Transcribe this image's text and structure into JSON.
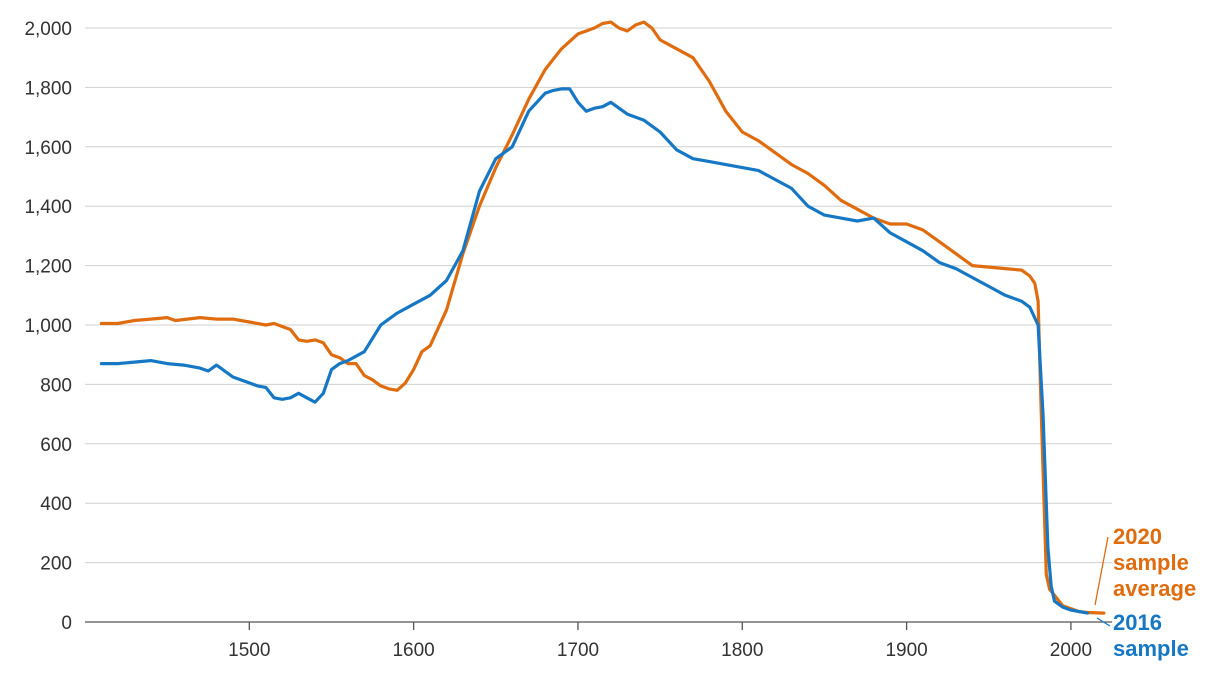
{
  "chart_data": {
    "type": "line",
    "title": "",
    "xlabel": "",
    "ylabel": "",
    "xlim": [
      1400,
      2025
    ],
    "ylim": [
      0,
      2000
    ],
    "grid": "horizontal",
    "x_ticks": [
      "1500",
      "1600",
      "1700",
      "1800",
      "1900",
      "2000"
    ],
    "y_ticks": [
      "0",
      "200",
      "400",
      "600",
      "800",
      "1,000",
      "1,200",
      "1,400",
      "1,600",
      "1,800",
      "2,000"
    ],
    "series": [
      {
        "name": "2020 sample average",
        "label_lines": [
          "2020",
          "sample",
          "average"
        ],
        "color": "#e06c10",
        "x": [
          1410,
          1420,
          1430,
          1440,
          1450,
          1455,
          1470,
          1480,
          1490,
          1500,
          1510,
          1515,
          1520,
          1525,
          1530,
          1535,
          1540,
          1545,
          1550,
          1555,
          1560,
          1565,
          1570,
          1575,
          1580,
          1585,
          1590,
          1595,
          1600,
          1605,
          1610,
          1620,
          1630,
          1640,
          1650,
          1660,
          1670,
          1680,
          1690,
          1700,
          1705,
          1710,
          1715,
          1720,
          1725,
          1730,
          1735,
          1740,
          1745,
          1750,
          1760,
          1770,
          1780,
          1790,
          1800,
          1810,
          1820,
          1830,
          1840,
          1850,
          1860,
          1870,
          1880,
          1890,
          1900,
          1910,
          1920,
          1930,
          1940,
          1950,
          1960,
          1970,
          1975,
          1978,
          1980,
          1982,
          1985,
          1987,
          1990,
          1995,
          2000,
          2005,
          2010,
          2020
        ],
        "y": [
          1005,
          1005,
          1015,
          1020,
          1025,
          1015,
          1025,
          1020,
          1020,
          1010,
          1000,
          1005,
          995,
          985,
          950,
          945,
          950,
          940,
          900,
          890,
          870,
          870,
          830,
          815,
          795,
          785,
          780,
          805,
          850,
          910,
          930,
          1050,
          1240,
          1400,
          1530,
          1640,
          1760,
          1860,
          1930,
          1980,
          1990,
          2000,
          2015,
          2020,
          2000,
          1990,
          2010,
          2020,
          2000,
          1960,
          1930,
          1900,
          1820,
          1720,
          1650,
          1620,
          1580,
          1540,
          1510,
          1470,
          1420,
          1390,
          1360,
          1340,
          1340,
          1320,
          1280,
          1240,
          1200,
          1195,
          1190,
          1185,
          1165,
          1140,
          1080,
          700,
          160,
          110,
          90,
          55,
          45,
          35,
          32,
          30
        ]
      },
      {
        "name": "2016 sample",
        "label_lines": [
          "2016",
          "sample"
        ],
        "color": "#1678c4",
        "x": [
          1410,
          1420,
          1430,
          1440,
          1450,
          1460,
          1470,
          1475,
          1480,
          1490,
          1500,
          1505,
          1510,
          1515,
          1520,
          1525,
          1530,
          1535,
          1540,
          1545,
          1550,
          1555,
          1560,
          1570,
          1580,
          1590,
          1600,
          1610,
          1620,
          1630,
          1640,
          1650,
          1660,
          1670,
          1680,
          1685,
          1690,
          1695,
          1700,
          1705,
          1710,
          1715,
          1720,
          1730,
          1740,
          1750,
          1760,
          1770,
          1780,
          1790,
          1800,
          1810,
          1820,
          1830,
          1840,
          1850,
          1860,
          1870,
          1880,
          1890,
          1900,
          1910,
          1920,
          1930,
          1940,
          1950,
          1960,
          1970,
          1975,
          1980,
          1983,
          1986,
          1988,
          1990,
          1995,
          2000,
          2005,
          2010
        ],
        "y": [
          870,
          870,
          875,
          880,
          870,
          865,
          855,
          845,
          865,
          825,
          805,
          795,
          790,
          755,
          750,
          755,
          770,
          755,
          740,
          770,
          850,
          870,
          880,
          910,
          1000,
          1040,
          1070,
          1100,
          1150,
          1250,
          1450,
          1560,
          1600,
          1720,
          1780,
          1790,
          1795,
          1795,
          1750,
          1720,
          1730,
          1735,
          1750,
          1710,
          1690,
          1650,
          1590,
          1560,
          1550,
          1540,
          1530,
          1520,
          1490,
          1460,
          1400,
          1370,
          1360,
          1350,
          1360,
          1310,
          1280,
          1250,
          1210,
          1190,
          1160,
          1130,
          1100,
          1080,
          1060,
          1000,
          700,
          250,
          120,
          70,
          50,
          40,
          35,
          30
        ]
      }
    ]
  }
}
